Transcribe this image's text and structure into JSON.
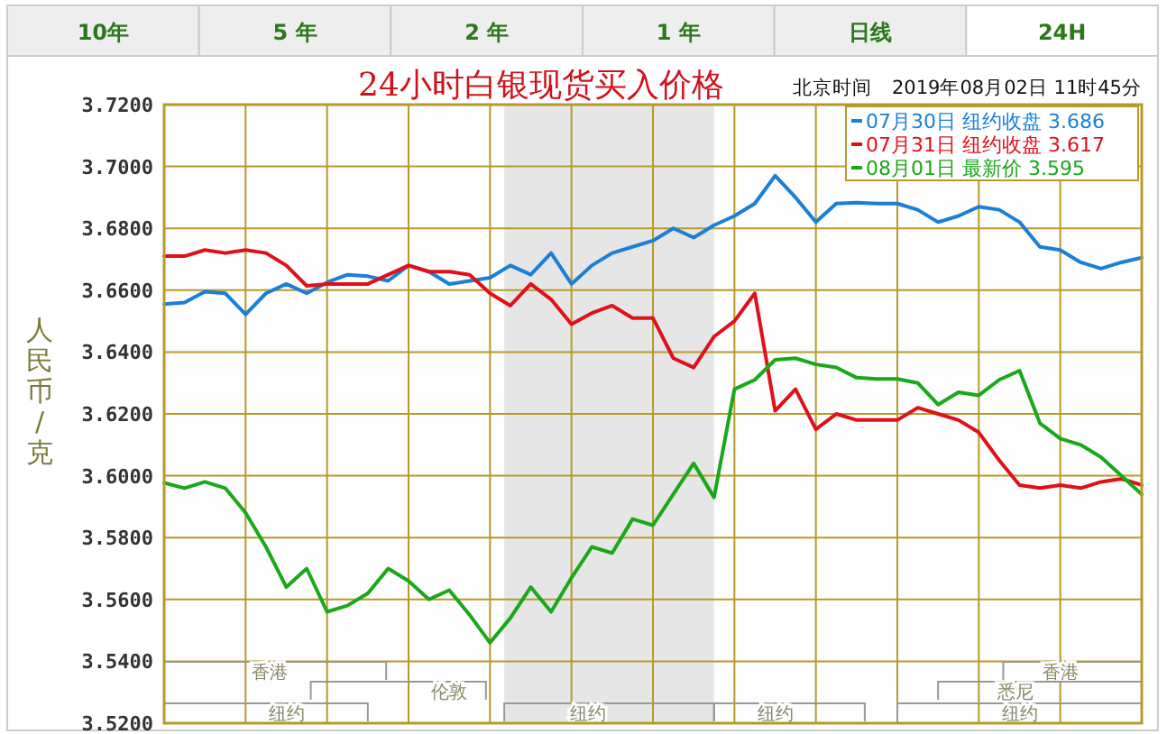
{
  "chart_data": {
    "type": "line",
    "title": "24小时白银现货买入价格",
    "subtitle": "北京时间　2019年08月02日 11时45分",
    "ylabel": "人民币/克",
    "annotations": [
      "10年",
      "5 年",
      "2 年",
      "1 年",
      "日线",
      "24H",
      "香港",
      "香港",
      "伦敦",
      "悉尼",
      "纽约",
      "纽约",
      "纽约",
      "纽约"
    ],
    "categories": [
      null,
      null,
      null,
      null,
      null,
      null,
      null,
      null,
      null,
      null,
      null,
      null,
      null,
      null,
      null,
      null,
      null,
      null,
      null,
      null,
      null,
      null,
      null,
      null,
      null,
      null,
      null,
      null,
      null,
      null,
      null,
      null,
      null,
      null,
      null,
      null,
      null,
      null,
      null,
      null,
      null,
      null,
      null,
      null,
      null,
      null,
      null,
      null,
      null
    ],
    "ylim": [
      3.52,
      3.72
    ],
    "yticks": [
      {
        "value": 3.52,
        "label": "3.5200"
      },
      {
        "value": 3.54,
        "label": "3.5400"
      },
      {
        "value": 3.56,
        "label": "3.5600"
      },
      {
        "value": 3.58,
        "label": "3.5800"
      },
      {
        "value": 3.6,
        "label": "3.6000"
      },
      {
        "value": 3.62,
        "label": "3.6200"
      },
      {
        "value": 3.64,
        "label": "3.6400"
      },
      {
        "value": 3.66,
        "label": "3.6600"
      },
      {
        "value": 3.68,
        "label": "3.6800"
      },
      {
        "value": 3.7,
        "label": "3.7000"
      },
      {
        "value": 3.72,
        "label": "3.7200"
      }
    ],
    "grid": true,
    "legend": "top right",
    "tick_labels": "y",
    "line_style": "solid",
    "series": [
      {
        "name": "07月30日 纽约收盘 3.686",
        "color": "#1a7fd6",
        "values": [
          3.6555,
          3.656,
          3.6595,
          3.659,
          3.6522,
          3.659,
          3.662,
          3.659,
          3.6625,
          3.665,
          3.6645,
          3.663,
          3.668,
          3.666,
          3.662,
          3.663,
          3.664,
          3.668,
          3.665,
          3.672,
          3.662,
          3.668,
          3.672,
          3.674,
          3.676,
          3.68,
          3.677,
          3.681,
          3.684,
          3.688,
          3.697,
          3.69,
          3.682,
          3.688,
          3.6883,
          3.688,
          3.688,
          3.686,
          3.682,
          3.684,
          3.687,
          3.686,
          3.682,
          3.674,
          3.673,
          3.669,
          3.667,
          3.669,
          3.6705
        ]
      },
      {
        "name": "07月31日 纽约收盘 3.617",
        "color": "#e0101a",
        "values": [
          3.671,
          3.671,
          3.673,
          3.672,
          3.673,
          3.672,
          3.668,
          3.6614,
          3.662,
          3.662,
          3.662,
          3.665,
          3.668,
          3.666,
          3.666,
          3.665,
          3.659,
          3.655,
          3.662,
          3.657,
          3.649,
          3.6526,
          3.655,
          3.651,
          3.651,
          3.638,
          3.635,
          3.645,
          3.65,
          3.659,
          3.621,
          3.628,
          3.615,
          3.62,
          3.618,
          3.618,
          3.618,
          3.622,
          3.62,
          3.618,
          3.614,
          3.605,
          3.597,
          3.596,
          3.597,
          3.596,
          3.598,
          3.599,
          3.597
        ]
      },
      {
        "name": "08月01日 最新价 3.595",
        "color": "#1aa81a",
        "values": [
          3.5977,
          3.596,
          3.598,
          3.596,
          3.588,
          3.577,
          3.564,
          3.57,
          3.556,
          3.558,
          3.562,
          3.57,
          3.566,
          3.56,
          3.563,
          3.555,
          3.546,
          3.554,
          3.564,
          3.556,
          3.567,
          3.577,
          3.575,
          3.586,
          3.584,
          3.594,
          3.604,
          3.593,
          3.628,
          3.631,
          3.6375,
          3.638,
          3.636,
          3.635,
          3.6317,
          3.6313,
          3.6313,
          3.63,
          3.623,
          3.627,
          3.626,
          3.631,
          3.634,
          3.617,
          3.612,
          3.61,
          3.606,
          3.6,
          3.594
        ]
      }
    ]
  }
}
